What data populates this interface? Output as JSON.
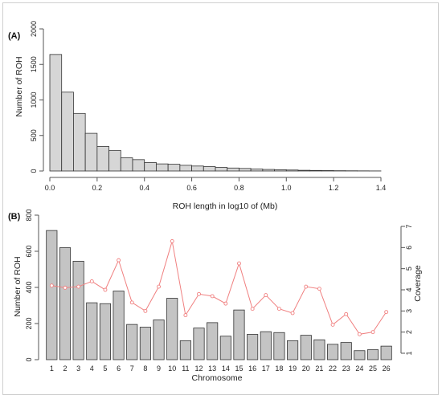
{
  "chart_data": [
    {
      "type": "bar",
      "panel_label": "(A)",
      "xlabel": "ROH length in log10 of (Mb)",
      "ylabel": "Number of ROH",
      "bin_edges": [
        0.0,
        0.05,
        0.1,
        0.15,
        0.2,
        0.25,
        0.3,
        0.35,
        0.4,
        0.45,
        0.5,
        0.55,
        0.6,
        0.65,
        0.7,
        0.75,
        0.8,
        0.85,
        0.9,
        0.95,
        1.0,
        1.05,
        1.1,
        1.15,
        1.2,
        1.25,
        1.3,
        1.35,
        1.4
      ],
      "values": [
        1640,
        1110,
        810,
        530,
        345,
        290,
        185,
        160,
        120,
        100,
        95,
        80,
        70,
        62,
        50,
        42,
        36,
        28,
        22,
        18,
        14,
        10,
        8,
        6,
        4,
        3,
        2,
        1
      ],
      "xlim": [
        0.0,
        1.4
      ],
      "ylim": [
        0,
        2000
      ],
      "xticks": [
        "0.0",
        "0.2",
        "0.4",
        "0.6",
        "0.8",
        "1.0",
        "1.2",
        "1.4"
      ],
      "xtick_values": [
        0.0,
        0.2,
        0.4,
        0.6,
        0.8,
        1.0,
        1.2,
        1.4
      ],
      "yticks": [
        "0",
        "500",
        "1000",
        "1500",
        "2000"
      ],
      "ytick_values": [
        0,
        500,
        1000,
        1500,
        2000
      ],
      "bar_color": "#d6d6d6"
    },
    {
      "type": "bar+line",
      "panel_label": "(B)",
      "xlabel": "Chromosome",
      "ylabel": "Number of ROH",
      "y2label": "Coverage",
      "categories": [
        "1",
        "2",
        "3",
        "4",
        "5",
        "6",
        "7",
        "8",
        "9",
        "10",
        "11",
        "12",
        "13",
        "14",
        "15",
        "16",
        "17",
        "18",
        "19",
        "20",
        "21",
        "22",
        "23",
        "24",
        "25",
        "26"
      ],
      "series": [
        {
          "values": [
            715,
            620,
            545,
            315,
            310,
            380,
            195,
            180,
            220,
            340,
            105,
            175,
            205,
            130,
            275,
            140,
            155,
            150,
            105,
            135,
            110,
            85,
            95,
            50,
            55,
            75
          ]
        },
        {
          "axis": "right",
          "values": [
            4.2,
            4.1,
            4.15,
            4.4,
            4.0,
            5.4,
            3.4,
            3.0,
            4.15,
            6.3,
            2.8,
            3.8,
            3.7,
            3.35,
            5.25,
            3.1,
            3.75,
            3.1,
            2.9,
            4.15,
            4.05,
            2.35,
            2.85,
            1.9,
            2.0,
            2.95
          ]
        }
      ],
      "ylim": [
        0,
        800
      ],
      "yticks": [
        "0",
        "200",
        "400",
        "600",
        "800"
      ],
      "ytick_values": [
        0,
        200,
        400,
        600,
        800
      ],
      "y2lim": [
        1,
        7
      ],
      "y2ticks": [
        "1",
        "2",
        "3",
        "4",
        "5",
        "6",
        "7"
      ],
      "y2tick_values": [
        1,
        2,
        3,
        4,
        5,
        6,
        7
      ],
      "bar_color": "#c4c4c4",
      "line_color": "#f08080"
    }
  ]
}
